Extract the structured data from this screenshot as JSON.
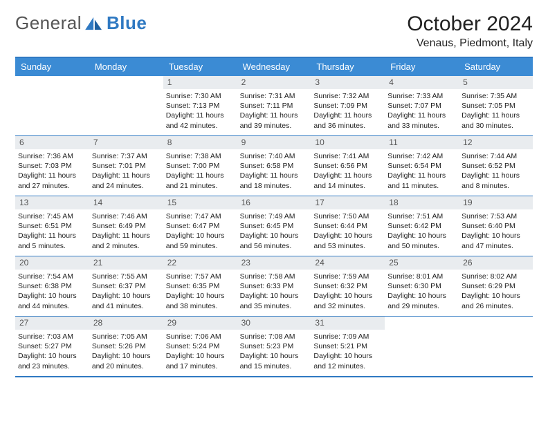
{
  "brand": {
    "part1": "General",
    "part2": "Blue"
  },
  "title": "October 2024",
  "location": "Venaus, Piedmont, Italy",
  "day_names": [
    "Sunday",
    "Monday",
    "Tuesday",
    "Wednesday",
    "Thursday",
    "Friday",
    "Saturday"
  ],
  "colors": {
    "accent": "#2f79c2",
    "header_bg": "#3b8bd4",
    "daynum_bg": "#e9ecef"
  },
  "first_weekday_index": 2,
  "days": [
    {
      "n": 1,
      "sunrise": "7:30 AM",
      "sunset": "7:13 PM",
      "daylight": "11 hours and 42 minutes."
    },
    {
      "n": 2,
      "sunrise": "7:31 AM",
      "sunset": "7:11 PM",
      "daylight": "11 hours and 39 minutes."
    },
    {
      "n": 3,
      "sunrise": "7:32 AM",
      "sunset": "7:09 PM",
      "daylight": "11 hours and 36 minutes."
    },
    {
      "n": 4,
      "sunrise": "7:33 AM",
      "sunset": "7:07 PM",
      "daylight": "11 hours and 33 minutes."
    },
    {
      "n": 5,
      "sunrise": "7:35 AM",
      "sunset": "7:05 PM",
      "daylight": "11 hours and 30 minutes."
    },
    {
      "n": 6,
      "sunrise": "7:36 AM",
      "sunset": "7:03 PM",
      "daylight": "11 hours and 27 minutes."
    },
    {
      "n": 7,
      "sunrise": "7:37 AM",
      "sunset": "7:01 PM",
      "daylight": "11 hours and 24 minutes."
    },
    {
      "n": 8,
      "sunrise": "7:38 AM",
      "sunset": "7:00 PM",
      "daylight": "11 hours and 21 minutes."
    },
    {
      "n": 9,
      "sunrise": "7:40 AM",
      "sunset": "6:58 PM",
      "daylight": "11 hours and 18 minutes."
    },
    {
      "n": 10,
      "sunrise": "7:41 AM",
      "sunset": "6:56 PM",
      "daylight": "11 hours and 14 minutes."
    },
    {
      "n": 11,
      "sunrise": "7:42 AM",
      "sunset": "6:54 PM",
      "daylight": "11 hours and 11 minutes."
    },
    {
      "n": 12,
      "sunrise": "7:44 AM",
      "sunset": "6:52 PM",
      "daylight": "11 hours and 8 minutes."
    },
    {
      "n": 13,
      "sunrise": "7:45 AM",
      "sunset": "6:51 PM",
      "daylight": "11 hours and 5 minutes."
    },
    {
      "n": 14,
      "sunrise": "7:46 AM",
      "sunset": "6:49 PM",
      "daylight": "11 hours and 2 minutes."
    },
    {
      "n": 15,
      "sunrise": "7:47 AM",
      "sunset": "6:47 PM",
      "daylight": "10 hours and 59 minutes."
    },
    {
      "n": 16,
      "sunrise": "7:49 AM",
      "sunset": "6:45 PM",
      "daylight": "10 hours and 56 minutes."
    },
    {
      "n": 17,
      "sunrise": "7:50 AM",
      "sunset": "6:44 PM",
      "daylight": "10 hours and 53 minutes."
    },
    {
      "n": 18,
      "sunrise": "7:51 AM",
      "sunset": "6:42 PM",
      "daylight": "10 hours and 50 minutes."
    },
    {
      "n": 19,
      "sunrise": "7:53 AM",
      "sunset": "6:40 PM",
      "daylight": "10 hours and 47 minutes."
    },
    {
      "n": 20,
      "sunrise": "7:54 AM",
      "sunset": "6:38 PM",
      "daylight": "10 hours and 44 minutes."
    },
    {
      "n": 21,
      "sunrise": "7:55 AM",
      "sunset": "6:37 PM",
      "daylight": "10 hours and 41 minutes."
    },
    {
      "n": 22,
      "sunrise": "7:57 AM",
      "sunset": "6:35 PM",
      "daylight": "10 hours and 38 minutes."
    },
    {
      "n": 23,
      "sunrise": "7:58 AM",
      "sunset": "6:33 PM",
      "daylight": "10 hours and 35 minutes."
    },
    {
      "n": 24,
      "sunrise": "7:59 AM",
      "sunset": "6:32 PM",
      "daylight": "10 hours and 32 minutes."
    },
    {
      "n": 25,
      "sunrise": "8:01 AM",
      "sunset": "6:30 PM",
      "daylight": "10 hours and 29 minutes."
    },
    {
      "n": 26,
      "sunrise": "8:02 AM",
      "sunset": "6:29 PM",
      "daylight": "10 hours and 26 minutes."
    },
    {
      "n": 27,
      "sunrise": "7:03 AM",
      "sunset": "5:27 PM",
      "daylight": "10 hours and 23 minutes."
    },
    {
      "n": 28,
      "sunrise": "7:05 AM",
      "sunset": "5:26 PM",
      "daylight": "10 hours and 20 minutes."
    },
    {
      "n": 29,
      "sunrise": "7:06 AM",
      "sunset": "5:24 PM",
      "daylight": "10 hours and 17 minutes."
    },
    {
      "n": 30,
      "sunrise": "7:08 AM",
      "sunset": "5:23 PM",
      "daylight": "10 hours and 15 minutes."
    },
    {
      "n": 31,
      "sunrise": "7:09 AM",
      "sunset": "5:21 PM",
      "daylight": "10 hours and 12 minutes."
    }
  ],
  "labels": {
    "sunrise": "Sunrise:",
    "sunset": "Sunset:",
    "daylight": "Daylight:"
  }
}
